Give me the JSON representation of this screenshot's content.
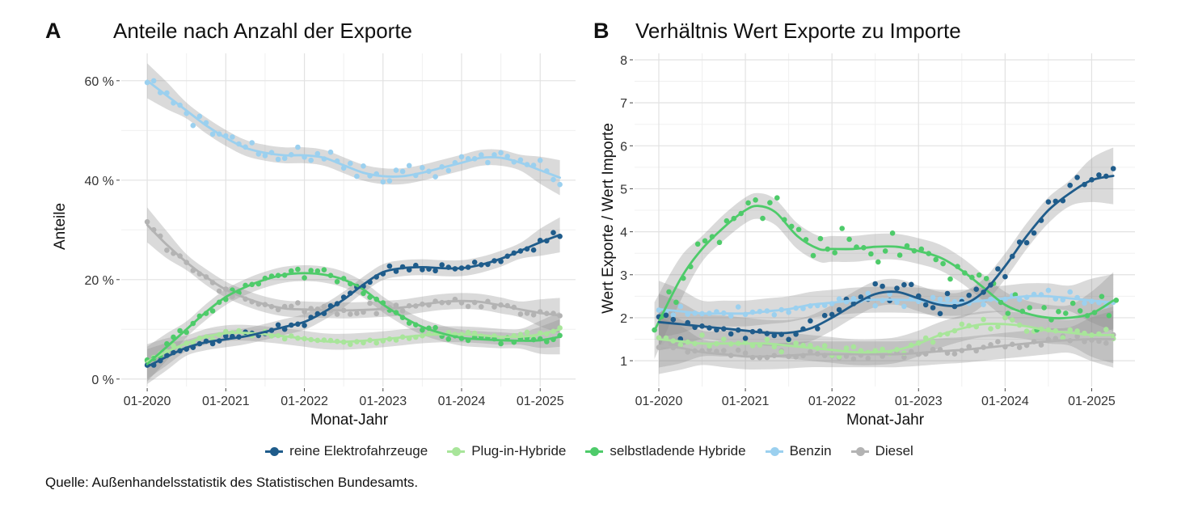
{
  "colors": {
    "reine Elektrofahrzeuge": "#1f5c8b",
    "Plug-in-Hybride": "#a8e59a",
    "selbstladende Hybride": "#4ecb6a",
    "Benzin": "#9bd0ef",
    "Diesel": "#b3b3b3"
  },
  "legend": [
    {
      "label": "reine Elektrofahrzeuge",
      "color": "#1f5c8b"
    },
    {
      "label": "Plug-in-Hybride",
      "color": "#a8e59a"
    },
    {
      "label": "selbstladende Hybride",
      "color": "#4ecb6a"
    },
    {
      "label": "Benzin",
      "color": "#9bd0ef"
    },
    {
      "label": "Diesel",
      "color": "#b3b3b3"
    }
  ],
  "source": "Quelle: Außenhandelsstatistik des Statistischen Bundesamts.",
  "chart_data": [
    {
      "type": "scatter",
      "panel_letter": "A",
      "title": "Anteile nach Anzahl der Exporte",
      "xlabel": "Monat-Jahr",
      "ylabel": "Anteile",
      "x_ticks": [
        "01-2020",
        "01-2021",
        "01-2022",
        "01-2023",
        "01-2024",
        "01-2025"
      ],
      "x_tick_values": [
        2020,
        2021,
        2022,
        2023,
        2024,
        2025
      ],
      "xlim": [
        2019.67,
        2025.45
      ],
      "y_ticks": [
        "0 %",
        "20 %",
        "40 %",
        "60 %"
      ],
      "y_tick_values": [
        0,
        20,
        40,
        60
      ],
      "ylim": [
        -1.5,
        65.5
      ],
      "series": [
        {
          "name": "reine Elektrofahrzeuge",
          "trend": [
            [
              2020,
              2.5
            ],
            [
              2020.25,
              4.5
            ],
            [
              2020.5,
              6.3
            ],
            [
              2020.75,
              7.4
            ],
            [
              2021,
              8
            ],
            [
              2021.25,
              8.6
            ],
            [
              2021.5,
              9.5
            ],
            [
              2021.75,
              10.5
            ],
            [
              2022,
              11.5
            ],
            [
              2022.25,
              13.5
            ],
            [
              2022.5,
              16
            ],
            [
              2022.75,
              19
            ],
            [
              2023,
              21.5
            ],
            [
              2023.25,
              22.3
            ],
            [
              2023.5,
              22.5
            ],
            [
              2023.75,
              22.3
            ],
            [
              2024,
              22.3
            ],
            [
              2024.25,
              23
            ],
            [
              2024.5,
              24.2
            ],
            [
              2024.75,
              25.8
            ],
            [
              2025,
              27.5
            ],
            [
              2025.25,
              29
            ]
          ]
        },
        {
          "name": "Plug-in-Hybride",
          "trend": [
            [
              2020,
              3.5
            ],
            [
              2020.25,
              5.5
            ],
            [
              2020.5,
              7.2
            ],
            [
              2020.75,
              8.5
            ],
            [
              2021,
              9.2
            ],
            [
              2021.25,
              9.3
            ],
            [
              2021.5,
              9
            ],
            [
              2021.75,
              8.6
            ],
            [
              2022,
              8.1
            ],
            [
              2022.25,
              7.6
            ],
            [
              2022.5,
              7.5
            ],
            [
              2022.75,
              7.7
            ],
            [
              2023,
              8
            ],
            [
              2023.25,
              8.4
            ],
            [
              2023.5,
              8.8
            ],
            [
              2023.75,
              9
            ],
            [
              2024,
              9
            ],
            [
              2024.25,
              8.8
            ],
            [
              2024.5,
              8.5
            ],
            [
              2024.75,
              8.5
            ],
            [
              2025,
              9
            ],
            [
              2025.25,
              10
            ]
          ]
        },
        {
          "name": "selbstladende Hybride",
          "trend": [
            [
              2020,
              3
            ],
            [
              2020.25,
              6.5
            ],
            [
              2020.5,
              10
            ],
            [
              2020.75,
              13.5
            ],
            [
              2021,
              16.5
            ],
            [
              2021.25,
              18.5
            ],
            [
              2021.5,
              20
            ],
            [
              2021.75,
              21
            ],
            [
              2022,
              21.3
            ],
            [
              2022.25,
              21
            ],
            [
              2022.5,
              20
            ],
            [
              2022.75,
              18
            ],
            [
              2023,
              15
            ],
            [
              2023.25,
              12.5
            ],
            [
              2023.5,
              10.5
            ],
            [
              2023.75,
              9.2
            ],
            [
              2024,
              8.3
            ],
            [
              2024.25,
              8
            ],
            [
              2024.5,
              7.8
            ],
            [
              2024.75,
              7.7
            ],
            [
              2025,
              7.8
            ],
            [
              2025.25,
              8.5
            ]
          ]
        },
        {
          "name": "Benzin",
          "trend": [
            [
              2020,
              60
            ],
            [
              2020.25,
              57
            ],
            [
              2020.5,
              54
            ],
            [
              2020.75,
              51
            ],
            [
              2021,
              48.5
            ],
            [
              2021.25,
              46.5
            ],
            [
              2021.5,
              45.5
            ],
            [
              2021.75,
              45
            ],
            [
              2022,
              45
            ],
            [
              2022.25,
              44.5
            ],
            [
              2022.5,
              43
            ],
            [
              2022.75,
              41.5
            ],
            [
              2023,
              40.8
            ],
            [
              2023.25,
              40.8
            ],
            [
              2023.5,
              41.5
            ],
            [
              2023.75,
              42.5
            ],
            [
              2024,
              43.5
            ],
            [
              2024.25,
              44.5
            ],
            [
              2024.5,
              44.5
            ],
            [
              2024.75,
              43.5
            ],
            [
              2025,
              42
            ],
            [
              2025.25,
              40.5
            ]
          ]
        },
        {
          "name": "Diesel",
          "trend": [
            [
              2020,
              31
            ],
            [
              2020.25,
              27
            ],
            [
              2020.5,
              23.5
            ],
            [
              2020.75,
              20.5
            ],
            [
              2021,
              18
            ],
            [
              2021.25,
              16.3
            ],
            [
              2021.5,
              15
            ],
            [
              2021.75,
              14.2
            ],
            [
              2022,
              14
            ],
            [
              2022.25,
              13.9
            ],
            [
              2022.5,
              13.8
            ],
            [
              2022.75,
              13.9
            ],
            [
              2023,
              14.1
            ],
            [
              2023.25,
              14.4
            ],
            [
              2023.5,
              15
            ],
            [
              2023.75,
              15.5
            ],
            [
              2024,
              15.7
            ],
            [
              2024.25,
              15.5
            ],
            [
              2024.5,
              14.8
            ],
            [
              2024.75,
              14
            ],
            [
              2025,
              13.3
            ],
            [
              2025.25,
              12.8
            ]
          ]
        }
      ]
    },
    {
      "type": "scatter",
      "panel_letter": "B",
      "title": "Verhältnis Wert Exporte zu Importe",
      "xlabel": "Monat-Jahr",
      "ylabel": "Wert Exporte / Wert Importe",
      "x_ticks": [
        "01-2020",
        "01-2021",
        "01-2022",
        "01-2023",
        "01-2024",
        "01-2025"
      ],
      "x_tick_values": [
        2020,
        2021,
        2022,
        2023,
        2024,
        2025
      ],
      "xlim": [
        2019.72,
        2025.5
      ],
      "y_ticks": [
        "1",
        "2",
        "3",
        "4",
        "5",
        "6",
        "7",
        "8"
      ],
      "y_tick_values": [
        1,
        2,
        3,
        4,
        5,
        6,
        7,
        8
      ],
      "ylim": [
        0.4,
        8.15
      ],
      "series": [
        {
          "name": "reine Elektrofahrzeuge",
          "trend": [
            [
              2020,
              1.9
            ],
            [
              2020.25,
              1.85
            ],
            [
              2020.5,
              1.8
            ],
            [
              2020.75,
              1.75
            ],
            [
              2021,
              1.7
            ],
            [
              2021.25,
              1.65
            ],
            [
              2021.5,
              1.65
            ],
            [
              2021.75,
              1.75
            ],
            [
              2022,
              2
            ],
            [
              2022.25,
              2.3
            ],
            [
              2022.5,
              2.55
            ],
            [
              2022.75,
              2.6
            ],
            [
              2023,
              2.45
            ],
            [
              2023.25,
              2.3
            ],
            [
              2023.5,
              2.3
            ],
            [
              2023.75,
              2.6
            ],
            [
              2024,
              3.2
            ],
            [
              2024.25,
              3.9
            ],
            [
              2024.5,
              4.5
            ],
            [
              2024.75,
              4.9
            ],
            [
              2025,
              5.2
            ],
            [
              2025.25,
              5.3
            ]
          ]
        },
        {
          "name": "Plug-in-Hybride",
          "trend": [
            [
              2020,
              1.5
            ],
            [
              2020.25,
              1.45
            ],
            [
              2020.5,
              1.4
            ],
            [
              2020.75,
              1.4
            ],
            [
              2021,
              1.4
            ],
            [
              2021.25,
              1.4
            ],
            [
              2021.5,
              1.35
            ],
            [
              2021.75,
              1.3
            ],
            [
              2022,
              1.25
            ],
            [
              2022.25,
              1.2
            ],
            [
              2022.5,
              1.2
            ],
            [
              2022.75,
              1.25
            ],
            [
              2023,
              1.4
            ],
            [
              2023.25,
              1.6
            ],
            [
              2023.5,
              1.75
            ],
            [
              2023.75,
              1.85
            ],
            [
              2024,
              1.85
            ],
            [
              2024.25,
              1.8
            ],
            [
              2024.5,
              1.7
            ],
            [
              2024.75,
              1.65
            ],
            [
              2025,
              1.6
            ],
            [
              2025.25,
              1.6
            ]
          ]
        },
        {
          "name": "selbstladende Hybride",
          "trend": [
            [
              2019.95,
              1.7
            ],
            [
              2020.25,
              2.9
            ],
            [
              2020.5,
              3.6
            ],
            [
              2020.75,
              4.1
            ],
            [
              2021,
              4.5
            ],
            [
              2021.15,
              4.6
            ],
            [
              2021.35,
              4.45
            ],
            [
              2021.6,
              3.9
            ],
            [
              2021.85,
              3.6
            ],
            [
              2022,
              3.6
            ],
            [
              2022.25,
              3.6
            ],
            [
              2022.5,
              3.65
            ],
            [
              2022.75,
              3.65
            ],
            [
              2023,
              3.55
            ],
            [
              2023.25,
              3.4
            ],
            [
              2023.5,
              3.1
            ],
            [
              2023.75,
              2.7
            ],
            [
              2024,
              2.3
            ],
            [
              2024.25,
              2.1
            ],
            [
              2024.5,
              2.0
            ],
            [
              2024.75,
              2
            ],
            [
              2025,
              2.1
            ],
            [
              2025.25,
              2.4
            ]
          ]
        },
        {
          "name": "Benzin",
          "trend": [
            [
              2020,
              2.2
            ],
            [
              2020.25,
              2.15
            ],
            [
              2020.5,
              2.1
            ],
            [
              2020.75,
              2.1
            ],
            [
              2021,
              2.1
            ],
            [
              2021.25,
              2.15
            ],
            [
              2021.5,
              2.2
            ],
            [
              2021.75,
              2.3
            ],
            [
              2022,
              2.35
            ],
            [
              2022.25,
              2.4
            ],
            [
              2022.5,
              2.42
            ],
            [
              2022.75,
              2.42
            ],
            [
              2023,
              2.4
            ],
            [
              2023.25,
              2.35
            ],
            [
              2023.5,
              2.35
            ],
            [
              2023.75,
              2.4
            ],
            [
              2024,
              2.45
            ],
            [
              2024.25,
              2.5
            ],
            [
              2024.5,
              2.5
            ],
            [
              2024.75,
              2.45
            ],
            [
              2025,
              2.4
            ],
            [
              2025.25,
              2.35
            ]
          ]
        },
        {
          "name": "Diesel",
          "trend": [
            [
              2020,
              1.35
            ],
            [
              2020.25,
              1.3
            ],
            [
              2020.5,
              1.2
            ],
            [
              2020.75,
              1.15
            ],
            [
              2021,
              1.1
            ],
            [
              2021.25,
              1.1
            ],
            [
              2021.5,
              1.12
            ],
            [
              2021.75,
              1.15
            ],
            [
              2022,
              1.15
            ],
            [
              2022.25,
              1.15
            ],
            [
              2022.5,
              1.15
            ],
            [
              2022.75,
              1.15
            ],
            [
              2023,
              1.18
            ],
            [
              2023.25,
              1.22
            ],
            [
              2023.5,
              1.25
            ],
            [
              2023.75,
              1.3
            ],
            [
              2024,
              1.35
            ],
            [
              2024.25,
              1.4
            ],
            [
              2024.5,
              1.45
            ],
            [
              2024.75,
              1.48
            ],
            [
              2025,
              1.5
            ],
            [
              2025.25,
              1.5
            ]
          ]
        }
      ]
    }
  ]
}
